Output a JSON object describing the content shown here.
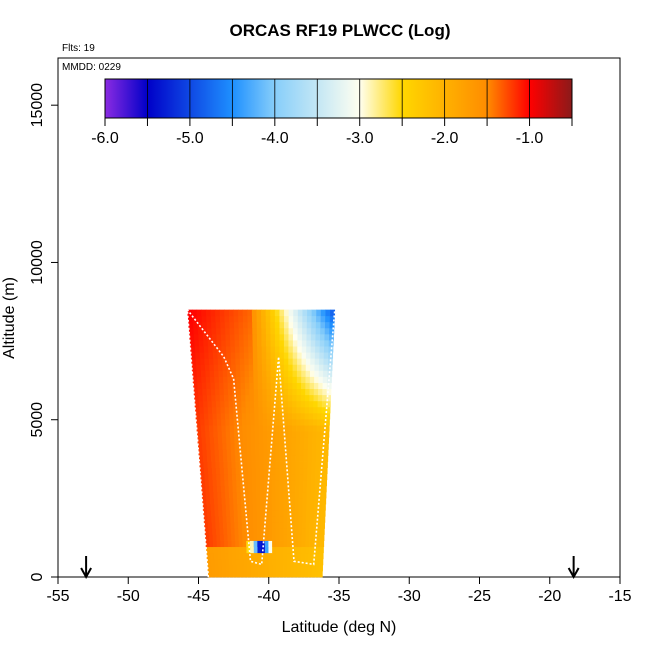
{
  "chart_data": {
    "type": "heatmap",
    "title": "ORCAS RF19 PLWCC (Log)",
    "flights_note": "Flts: 19",
    "date_note": "MMDD: 0229",
    "xlabel": "Latitude (deg N)",
    "ylabel": "Altitude (m)",
    "xlim": [
      -55,
      -15
    ],
    "ylim": [
      0,
      16500
    ],
    "x_ticks": [
      -55,
      -50,
      -45,
      -40,
      -35,
      -30,
      -25,
      -20,
      -15
    ],
    "y_ticks": [
      0,
      5000,
      10000,
      15000
    ],
    "colorbar": {
      "range": [
        -6.0,
        -0.5
      ],
      "ticks": [
        -6.0,
        -5.0,
        -4.0,
        -3.0,
        -2.0,
        -1.0
      ],
      "tick_labels": [
        "-6.0",
        "-5.0",
        "-4.0",
        "-3.0",
        "-2.0",
        "-1.0"
      ],
      "colors": [
        {
          "v": -6.0,
          "c": "#8b2be2"
        },
        {
          "v": -5.5,
          "c": "#0000c8"
        },
        {
          "v": -4.5,
          "c": "#1e90ff"
        },
        {
          "v": -4.0,
          "c": "#87cefa"
        },
        {
          "v": -3.0,
          "c": "#fffff0"
        },
        {
          "v": -2.5,
          "c": "#ffd700"
        },
        {
          "v": -1.5,
          "c": "#ff8c00"
        },
        {
          "v": -1.0,
          "c": "#ff0000"
        },
        {
          "v": -0.5,
          "c": "#8b1a1a"
        }
      ]
    },
    "markers": [
      {
        "x": -53.0,
        "label": "arrow"
      },
      {
        "x": -18.3,
        "label": "arrow"
      }
    ],
    "footprint": {
      "top_altitude": 8500,
      "top_left_lat": -45.8,
      "top_right_lat": -35.3,
      "bottom_left_lat": -44.3,
      "bottom_right_lat": -36.2
    },
    "grid": false,
    "legend": "top-inside-colorbar"
  }
}
